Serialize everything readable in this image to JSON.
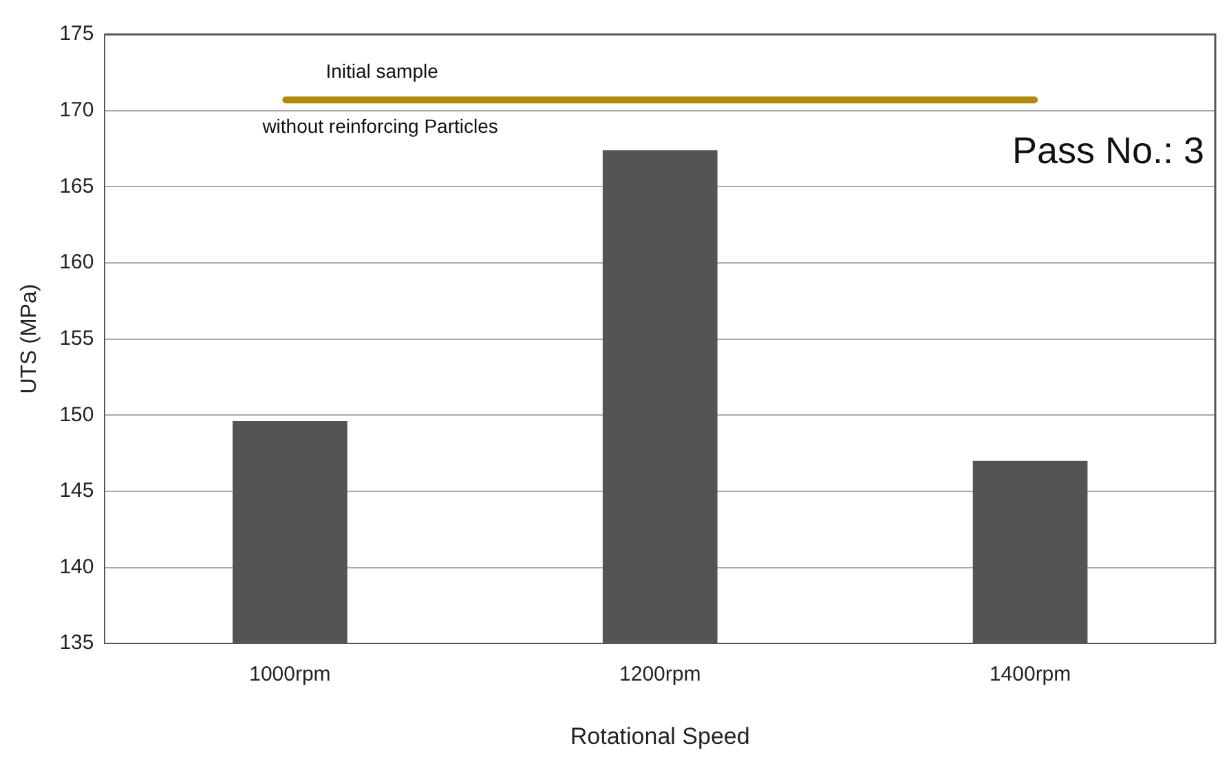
{
  "chart_data": {
    "type": "bar",
    "xlabel": "Rotational Speed",
    "ylabel": "UTS (MPa)",
    "categories": [
      "1000rpm",
      "1200rpm",
      "1400rpm"
    ],
    "values": [
      149.6,
      167.4,
      147.0
    ],
    "color": "#545454",
    "ylim": [
      135,
      175
    ],
    "yticks": [
      135,
      140,
      145,
      150,
      155,
      160,
      165,
      170,
      175
    ],
    "grid": "y",
    "legend": false,
    "ref_lines": [
      {
        "axis": "y",
        "value": 170.7,
        "label": "Initial sample\nwithout reinforcing Particles",
        "color": "#b08a0c"
      }
    ],
    "annotations": [
      "Pass No.: 3"
    ]
  }
}
